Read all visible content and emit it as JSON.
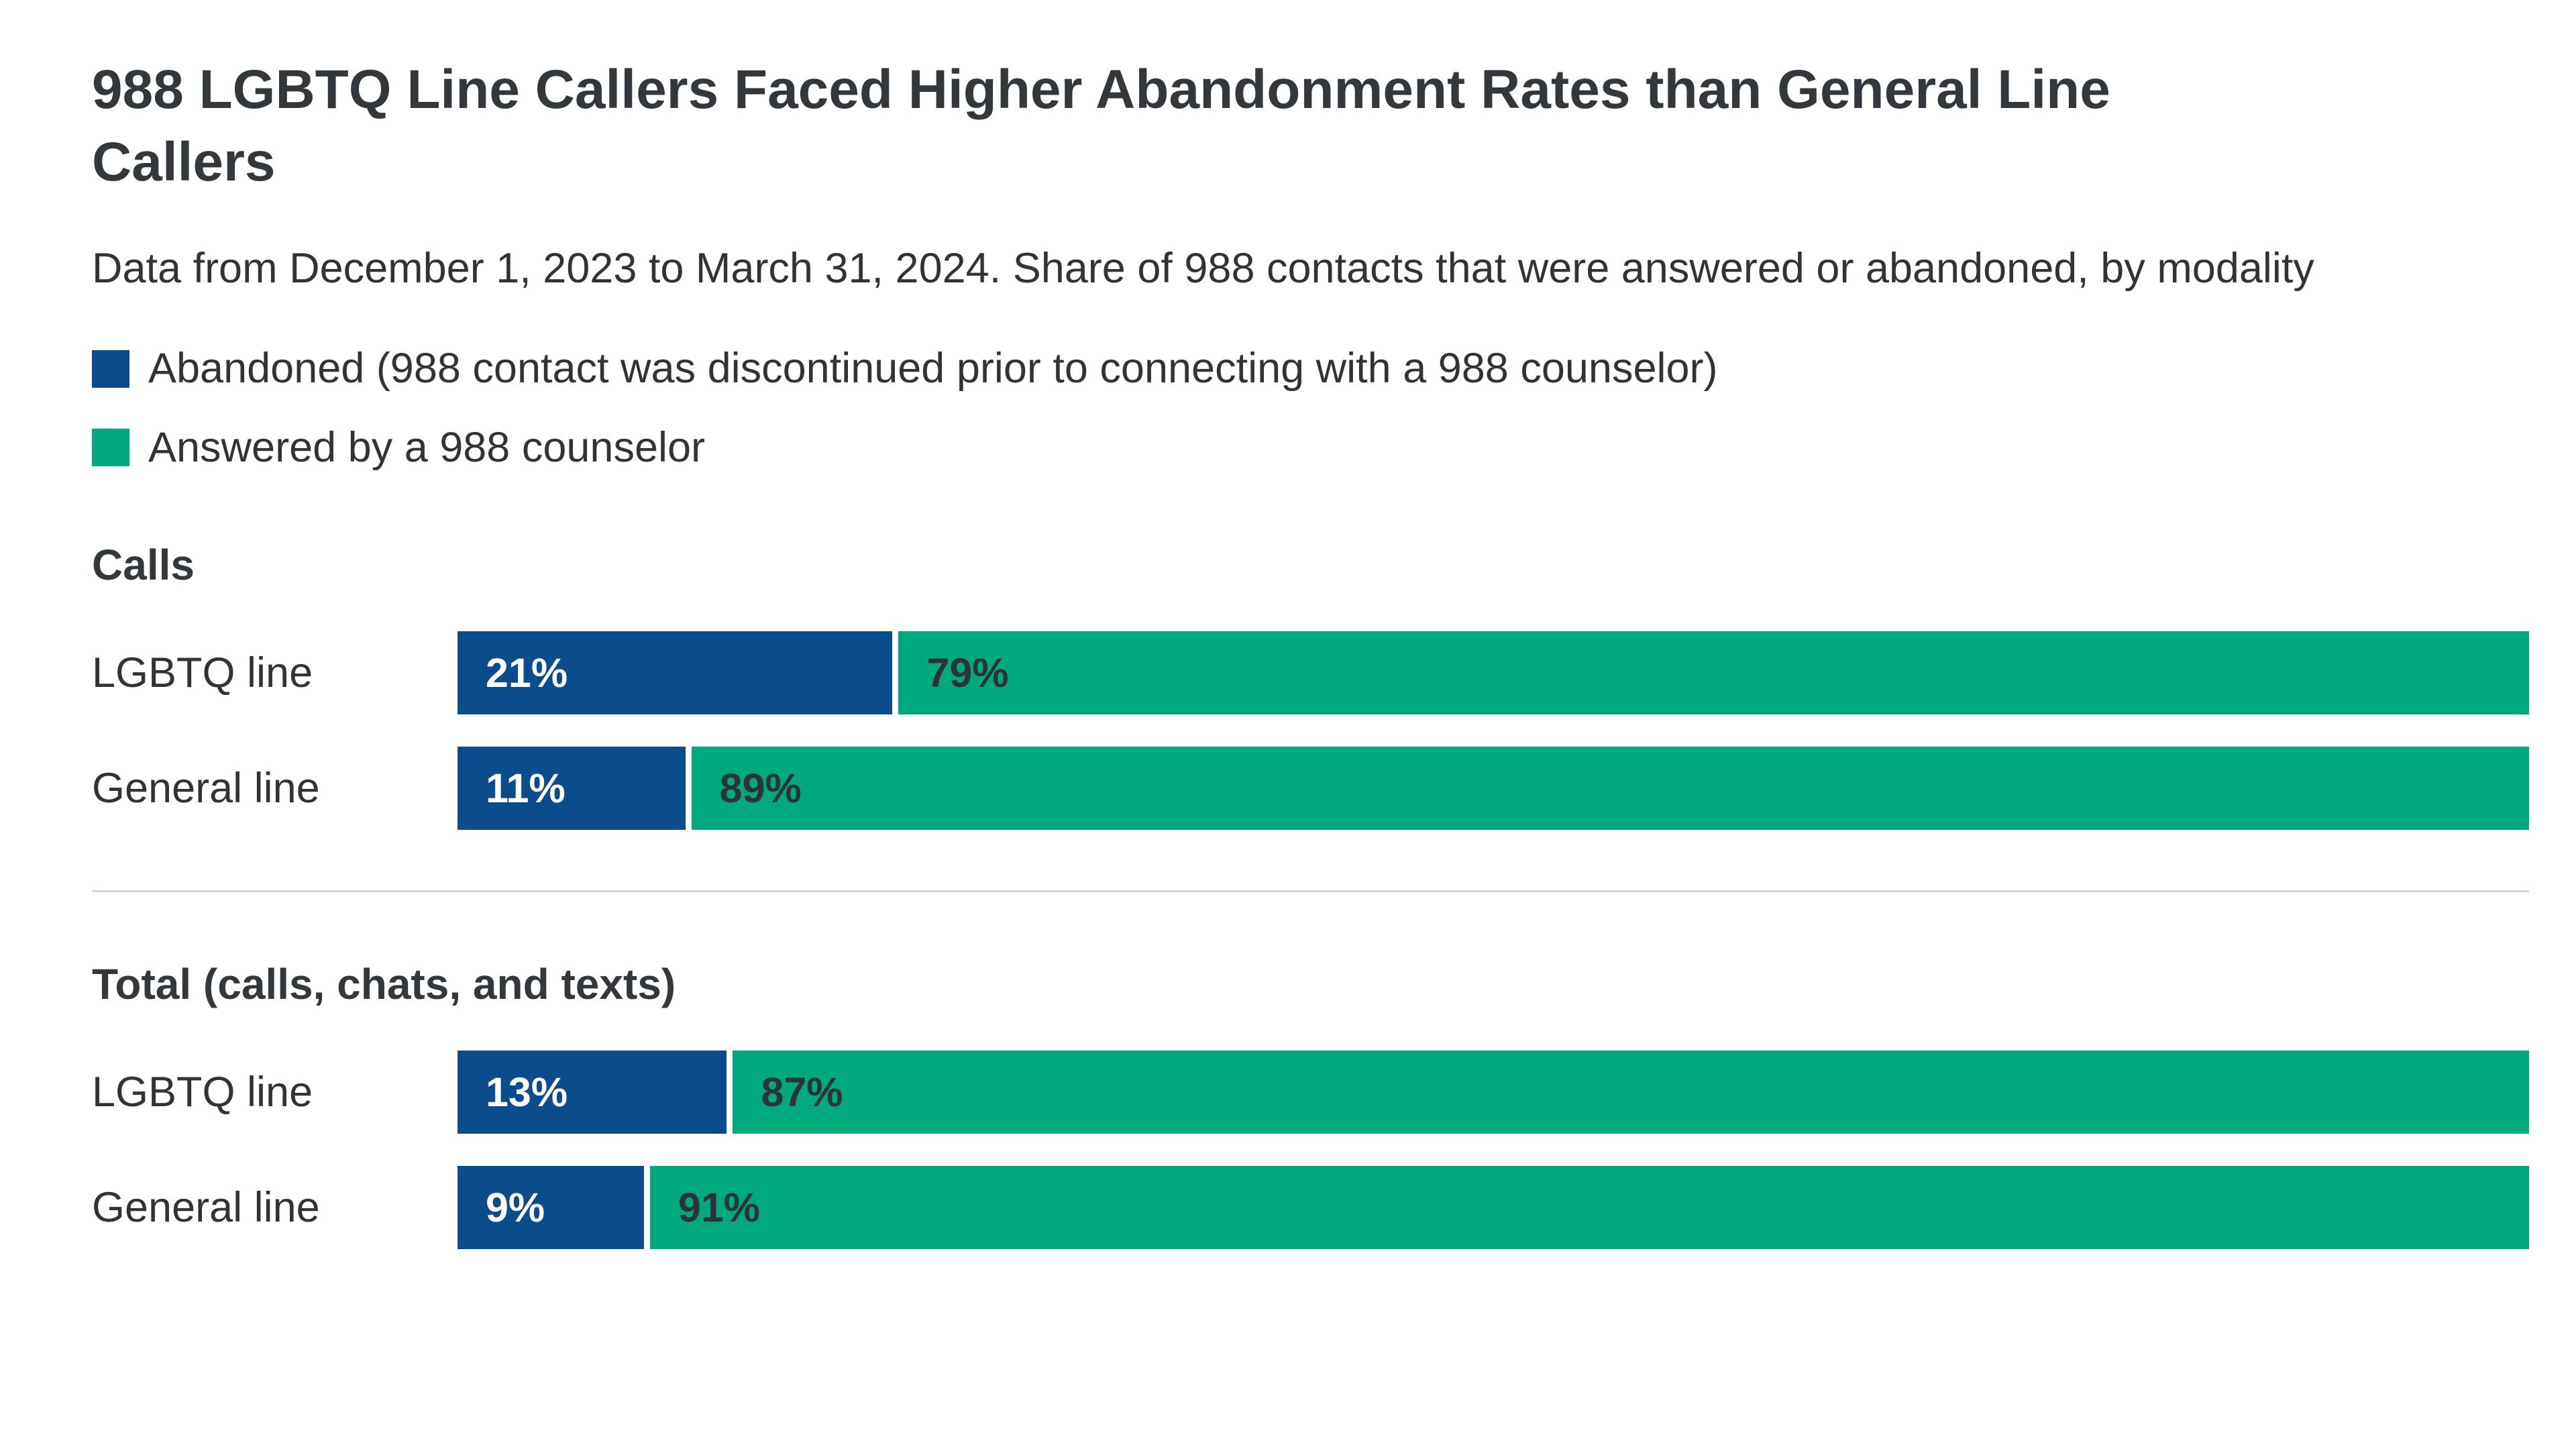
{
  "title": "988 LGBTQ Line Callers Faced Higher Abandonment Rates than General Line Callers",
  "subtitle": "Data from December 1, 2023 to March 31, 2024. Share of 988 contacts that were answered or abandoned, by modality",
  "colors": {
    "abandoned": "#0b4d8c",
    "answered": "#00a87e",
    "title_text": "#33383d",
    "body_text": "#333333",
    "label_on_abandoned": "#ffffff",
    "label_on_answered": "#2d3339",
    "divider": "#d9d9d9"
  },
  "legend": {
    "items": [
      {
        "label": "Abandoned (988 contact was discontinued prior to connecting with a 988 counselor)",
        "color": "#0b4d8c"
      },
      {
        "label": "Answered by a 988 counselor",
        "color": "#00a87e"
      }
    ]
  },
  "chart_data": {
    "type": "bar",
    "orientation": "horizontal",
    "stacked": true,
    "unit": "percent",
    "xlim": [
      0,
      100
    ],
    "legend_position": "top-left",
    "series_names": [
      "Abandoned (988 contact was discontinued prior to connecting with a 988 counselor)",
      "Answered by a 988 counselor"
    ],
    "sections": [
      {
        "title": "Calls",
        "rows": [
          {
            "label": "LGBTQ line",
            "abandoned": 21,
            "answered": 79,
            "abandoned_label": "21%",
            "answered_label": "79%"
          },
          {
            "label": "General line",
            "abandoned": 11,
            "answered": 89,
            "abandoned_label": "11%",
            "answered_label": "89%"
          }
        ]
      },
      {
        "title": "Total (calls, chats, and texts)",
        "rows": [
          {
            "label": "LGBTQ line",
            "abandoned": 13,
            "answered": 87,
            "abandoned_label": "13%",
            "answered_label": "87%"
          },
          {
            "label": "General line",
            "abandoned": 9,
            "answered": 91,
            "abandoned_label": "9%",
            "answered_label": "91%"
          }
        ]
      }
    ]
  }
}
